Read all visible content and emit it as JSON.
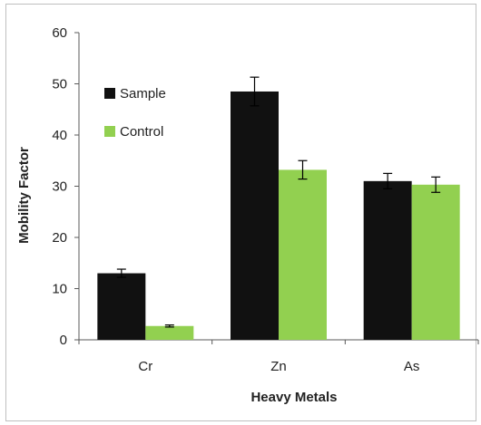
{
  "chart_data": {
    "type": "bar",
    "categories": [
      "Cr",
      "Zn",
      "As"
    ],
    "series": [
      {
        "name": "Sample",
        "values": [
          13.0,
          48.5,
          31.0
        ],
        "errors": [
          0.8,
          2.8,
          1.5
        ],
        "color": "#111111"
      },
      {
        "name": "Control",
        "values": [
          2.7,
          33.2,
          30.3
        ],
        "errors": [
          0.2,
          1.8,
          1.5
        ],
        "color": "#92d050"
      }
    ],
    "xlabel": "Heavy Metals",
    "ylabel": "Mobility Factor",
    "ylim": [
      0,
      60
    ],
    "yticks": [
      "0",
      "10",
      "20",
      "30",
      "40",
      "50",
      "60"
    ],
    "grid": false,
    "legend_position": "top-left"
  }
}
